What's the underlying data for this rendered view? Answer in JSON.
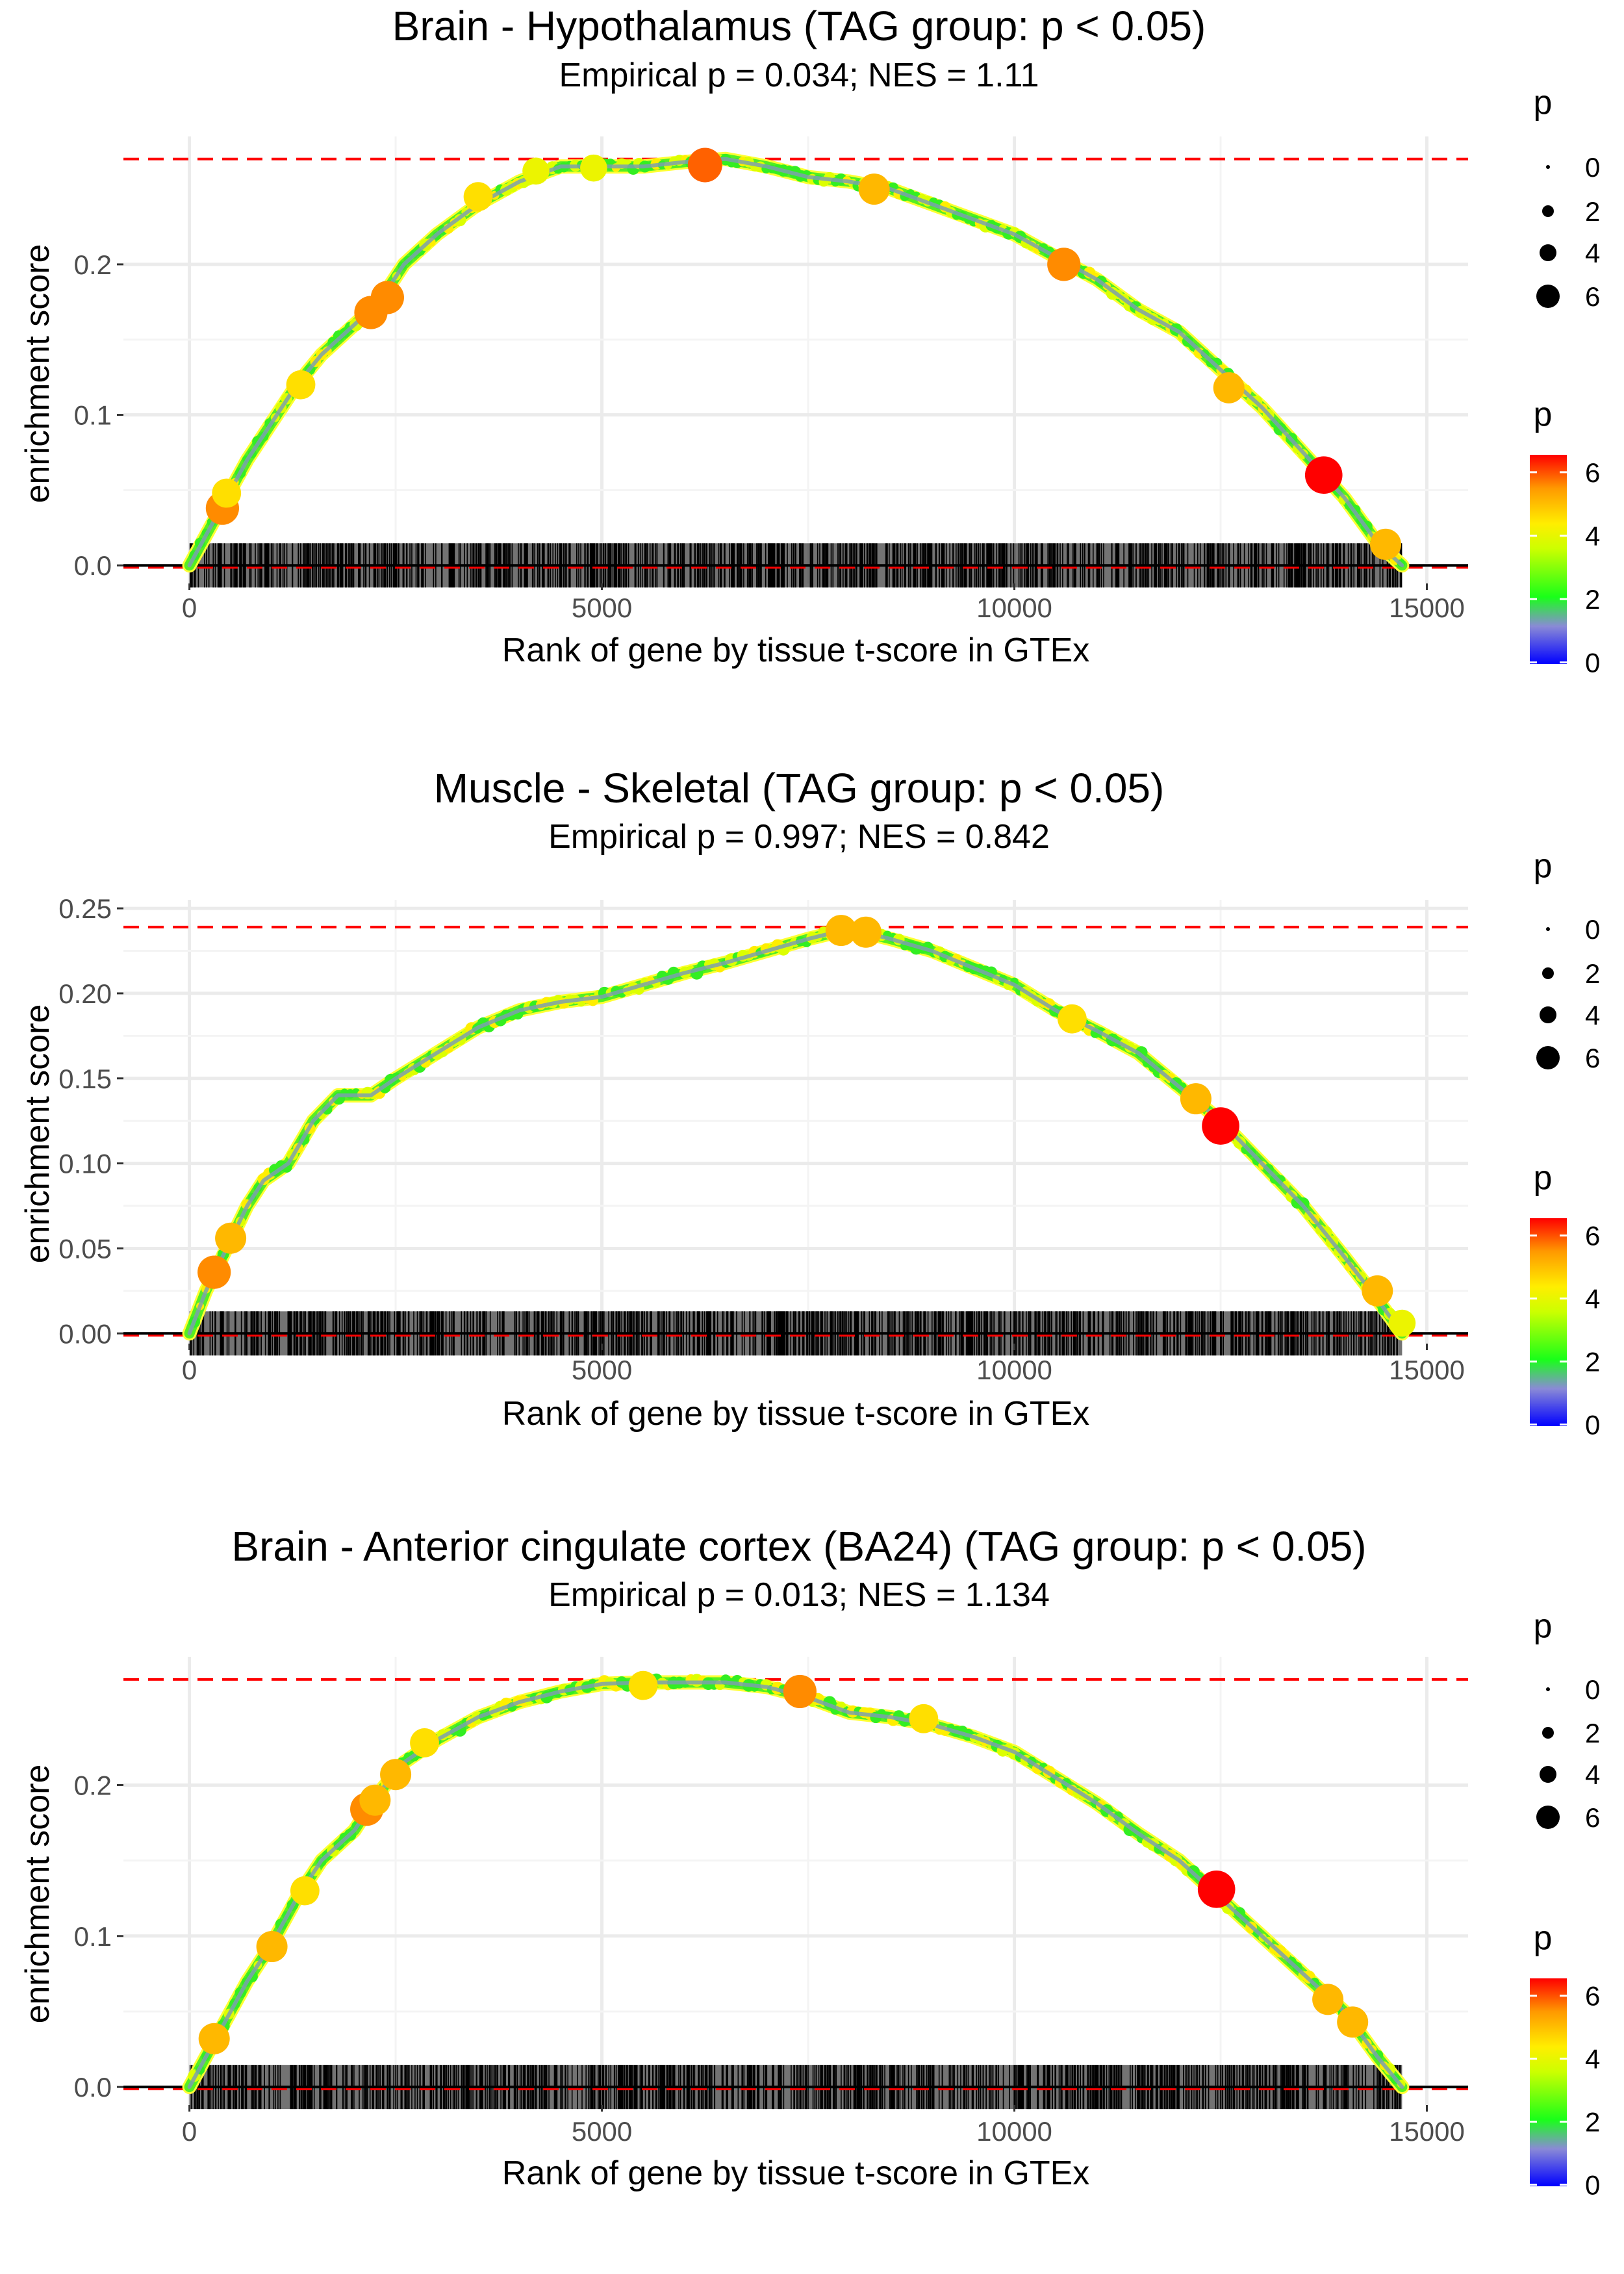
{
  "chart_data": [
    {
      "type": "line",
      "title": "Brain - Hypothalamus (TAG group: p < 0.05)",
      "subtitle": "Empirical p = 0.034; NES = 1.11",
      "xlabel": "Rank of gene by tissue t-score in GTEx",
      "ylabel": "enrichment score",
      "xlim": [
        -800,
        15500
      ],
      "ylim": [
        -0.012,
        0.285
      ],
      "xticks": [
        0,
        5000,
        10000,
        15000
      ],
      "xtick_labels": [
        "0",
        "5000",
        "10000",
        "15000"
      ],
      "yticks": [
        0.0,
        0.1,
        0.2
      ],
      "ytick_labels": [
        "0.0",
        "0.1",
        "0.2"
      ],
      "max_es": 0.27,
      "n_genes": 14700,
      "curve": [
        [
          0,
          0
        ],
        [
          200,
          0.02
        ],
        [
          400,
          0.04
        ],
        [
          700,
          0.07
        ],
        [
          1000,
          0.095
        ],
        [
          1300,
          0.12
        ],
        [
          1600,
          0.14
        ],
        [
          2000,
          0.16
        ],
        [
          2300,
          0.175
        ],
        [
          2600,
          0.2
        ],
        [
          3000,
          0.22
        ],
        [
          3500,
          0.24
        ],
        [
          4000,
          0.255
        ],
        [
          4500,
          0.265
        ],
        [
          5000,
          0.265
        ],
        [
          5500,
          0.265
        ],
        [
          6000,
          0.268
        ],
        [
          6500,
          0.27
        ],
        [
          7000,
          0.265
        ],
        [
          7500,
          0.258
        ],
        [
          8000,
          0.255
        ],
        [
          8500,
          0.25
        ],
        [
          9000,
          0.24
        ],
        [
          9500,
          0.23
        ],
        [
          10000,
          0.22
        ],
        [
          10500,
          0.205
        ],
        [
          11000,
          0.19
        ],
        [
          11500,
          0.17
        ],
        [
          12000,
          0.155
        ],
        [
          12500,
          0.13
        ],
        [
          13000,
          0.105
        ],
        [
          13500,
          0.075
        ],
        [
          14000,
          0.045
        ],
        [
          14400,
          0.015
        ],
        [
          14700,
          0.0
        ]
      ],
      "highlight_points": [
        [
          400,
          0.038,
          5.5
        ],
        [
          450,
          0.048,
          4.5
        ],
        [
          1350,
          0.12,
          4.5
        ],
        [
          2200,
          0.168,
          5.5
        ],
        [
          2400,
          0.178,
          5.5
        ],
        [
          3500,
          0.245,
          4.5
        ],
        [
          4200,
          0.262,
          4
        ],
        [
          4900,
          0.264,
          4
        ],
        [
          6250,
          0.266,
          5.8
        ],
        [
          8300,
          0.25,
          5
        ],
        [
          10600,
          0.2,
          5.5
        ],
        [
          12600,
          0.118,
          5
        ],
        [
          13750,
          0.06,
          6.5
        ],
        [
          14500,
          0.014,
          5
        ]
      ],
      "size_legend": {
        "title": "p",
        "labels": [
          "0",
          "2",
          "4",
          "6"
        ]
      },
      "color_legend": {
        "title": "p",
        "labels": [
          "6",
          "4",
          "2",
          "0"
        ]
      }
    },
    {
      "type": "line",
      "title": "Muscle - Skeletal (TAG group: p < 0.05)",
      "subtitle": "Empirical p = 0.997; NES = 0.842",
      "xlabel": "Rank of gene by tissue t-score in GTEx",
      "ylabel": "enrichment score",
      "xlim": [
        -800,
        15500
      ],
      "ylim": [
        -0.006,
        0.255
      ],
      "xticks": [
        0,
        5000,
        10000,
        15000
      ],
      "xtick_labels": [
        "0",
        "5000",
        "10000",
        "15000"
      ],
      "yticks": [
        0.0,
        0.05,
        0.1,
        0.15,
        0.2,
        0.25
      ],
      "ytick_labels": [
        "0.00",
        "0.05",
        "0.10",
        "0.15",
        "0.20",
        "0.25"
      ],
      "max_es": 0.239,
      "n_genes": 14700,
      "curve": [
        [
          0,
          0
        ],
        [
          200,
          0.025
        ],
        [
          400,
          0.045
        ],
        [
          700,
          0.075
        ],
        [
          900,
          0.09
        ],
        [
          1200,
          0.1
        ],
        [
          1500,
          0.125
        ],
        [
          1800,
          0.14
        ],
        [
          2200,
          0.14
        ],
        [
          2500,
          0.15
        ],
        [
          3000,
          0.165
        ],
        [
          3500,
          0.18
        ],
        [
          4000,
          0.19
        ],
        [
          4500,
          0.195
        ],
        [
          5000,
          0.198
        ],
        [
          5500,
          0.205
        ],
        [
          6000,
          0.212
        ],
        [
          6500,
          0.218
        ],
        [
          7000,
          0.225
        ],
        [
          7500,
          0.232
        ],
        [
          8000,
          0.238
        ],
        [
          8500,
          0.232
        ],
        [
          9000,
          0.225
        ],
        [
          9500,
          0.215
        ],
        [
          10000,
          0.205
        ],
        [
          10500,
          0.19
        ],
        [
          11000,
          0.178
        ],
        [
          11500,
          0.165
        ],
        [
          12000,
          0.145
        ],
        [
          12500,
          0.125
        ],
        [
          13000,
          0.1
        ],
        [
          13500,
          0.075
        ],
        [
          14000,
          0.045
        ],
        [
          14400,
          0.02
        ],
        [
          14700,
          0.0
        ]
      ],
      "highlight_points": [
        [
          300,
          0.036,
          5.5
        ],
        [
          500,
          0.056,
          5
        ],
        [
          7900,
          0.237,
          5
        ],
        [
          8200,
          0.236,
          5
        ],
        [
          10700,
          0.185,
          4.5
        ],
        [
          12200,
          0.138,
          5
        ],
        [
          12500,
          0.122,
          6.5
        ],
        [
          14400,
          0.025,
          5
        ],
        [
          14700,
          0.006,
          4
        ]
      ],
      "size_legend": {
        "title": "p",
        "labels": [
          "0",
          "2",
          "4",
          "6"
        ]
      },
      "color_legend": {
        "title": "p",
        "labels": [
          "6",
          "4",
          "2",
          "0"
        ]
      }
    },
    {
      "type": "line",
      "title": "Brain - Anterior cingulate cortex (BA24) (TAG group: p < 0.05)",
      "subtitle": "Empirical p = 0.013; NES = 1.134",
      "xlabel": "Rank of gene by tissue t-score in GTEx",
      "ylabel": "enrichment score",
      "xlim": [
        -800,
        15500
      ],
      "ylim": [
        -0.012,
        0.285
      ],
      "xticks": [
        0,
        5000,
        10000,
        15000
      ],
      "xtick_labels": [
        "0",
        "5000",
        "10000",
        "15000"
      ],
      "yticks": [
        0.0,
        0.1,
        0.2
      ],
      "ytick_labels": [
        "0.0",
        "0.1",
        "0.2"
      ],
      "max_es": 0.27,
      "n_genes": 14700,
      "curve": [
        [
          0,
          0
        ],
        [
          200,
          0.02
        ],
        [
          400,
          0.04
        ],
        [
          700,
          0.07
        ],
        [
          1000,
          0.095
        ],
        [
          1300,
          0.125
        ],
        [
          1600,
          0.15
        ],
        [
          2000,
          0.17
        ],
        [
          2300,
          0.195
        ],
        [
          2600,
          0.215
        ],
        [
          3000,
          0.23
        ],
        [
          3500,
          0.245
        ],
        [
          4000,
          0.255
        ],
        [
          4500,
          0.262
        ],
        [
          5000,
          0.267
        ],
        [
          5500,
          0.268
        ],
        [
          6000,
          0.268
        ],
        [
          6500,
          0.268
        ],
        [
          7000,
          0.265
        ],
        [
          7500,
          0.258
        ],
        [
          8000,
          0.248
        ],
        [
          8500,
          0.245
        ],
        [
          9000,
          0.24
        ],
        [
          9500,
          0.232
        ],
        [
          10000,
          0.222
        ],
        [
          10500,
          0.205
        ],
        [
          11000,
          0.188
        ],
        [
          11500,
          0.168
        ],
        [
          12000,
          0.15
        ],
        [
          12500,
          0.125
        ],
        [
          13000,
          0.1
        ],
        [
          13500,
          0.075
        ],
        [
          14000,
          0.05
        ],
        [
          14400,
          0.02
        ],
        [
          14700,
          0.0
        ]
      ],
      "highlight_points": [
        [
          300,
          0.032,
          5
        ],
        [
          1000,
          0.093,
          5
        ],
        [
          1400,
          0.13,
          4.5
        ],
        [
          2150,
          0.184,
          5.5
        ],
        [
          2250,
          0.19,
          5
        ],
        [
          2500,
          0.207,
          5
        ],
        [
          2850,
          0.228,
          4.5
        ],
        [
          5500,
          0.266,
          4.5
        ],
        [
          7400,
          0.262,
          5.5
        ],
        [
          8900,
          0.244,
          4.5
        ],
        [
          12450,
          0.131,
          6.5
        ],
        [
          13800,
          0.058,
          5
        ],
        [
          14100,
          0.043,
          5
        ]
      ],
      "size_legend": {
        "title": "p",
        "labels": [
          "0",
          "2",
          "4",
          "6"
        ]
      },
      "color_legend": {
        "title": "p",
        "labels": [
          "6",
          "4",
          "2",
          "0"
        ]
      }
    }
  ]
}
